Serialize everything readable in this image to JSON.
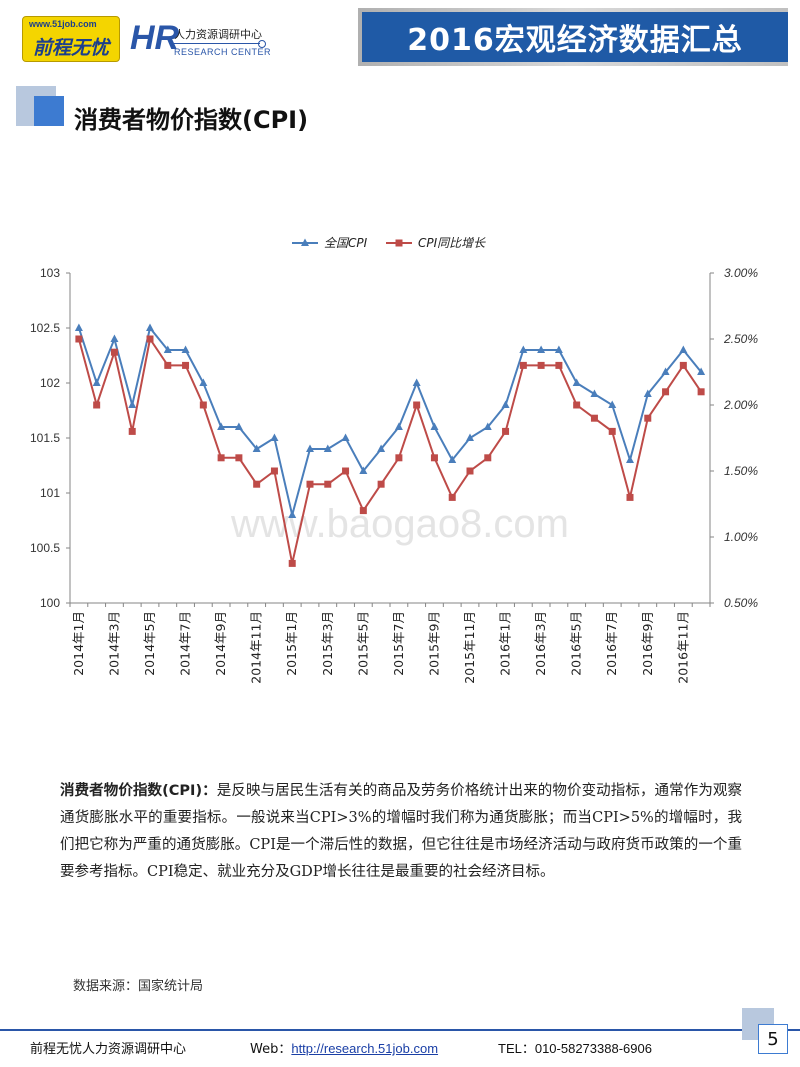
{
  "header": {
    "logo1_url": "www.51job.com",
    "logo1_name": "前程无忧",
    "logo2_mark": "HR",
    "logo2_cn": "人力资源调研中心",
    "logo2_en": "RESEARCH CENTER",
    "banner_title": "2016宏观经济数据汇总"
  },
  "section": {
    "title": "消费者物价指数(CPI)"
  },
  "watermark": "www.baogao8.com",
  "chart_data": {
    "type": "line",
    "title": "",
    "categories": [
      "2014年1月",
      "2014年2月",
      "2014年3月",
      "2014年4月",
      "2014年5月",
      "2014年6月",
      "2014年7月",
      "2014年8月",
      "2014年9月",
      "2014年10月",
      "2014年11月",
      "2014年12月",
      "2015年1月",
      "2015年2月",
      "2015年3月",
      "2015年4月",
      "2015年5月",
      "2015年6月",
      "2015年7月",
      "2015年8月",
      "2015年9月",
      "2015年10月",
      "2015年11月",
      "2015年12月",
      "2016年1月",
      "2016年2月",
      "2016年3月",
      "2016年4月",
      "2016年5月",
      "2016年6月",
      "2016年7月",
      "2016年8月",
      "2016年9月",
      "2016年10月",
      "2016年11月",
      "2016年12月"
    ],
    "tick_labels": [
      "2014年1月",
      "2014年3月",
      "2014年5月",
      "2014年7月",
      "2014年9月",
      "2014年11月",
      "2015年1月",
      "2015年3月",
      "2015年5月",
      "2015年7月",
      "2015年9月",
      "2015年11月",
      "2016年1月",
      "2016年3月",
      "2016年5月",
      "2016年7月",
      "2016年9月",
      "2016年11月"
    ],
    "series": [
      {
        "name": "全国CPI",
        "axis": "left",
        "color": "#4a7ebb",
        "marker": "triangle",
        "values": [
          102.5,
          102.0,
          102.4,
          101.8,
          102.5,
          102.3,
          102.3,
          102.0,
          101.6,
          101.6,
          101.4,
          101.5,
          100.8,
          101.4,
          101.4,
          101.5,
          101.2,
          101.4,
          101.6,
          102.0,
          101.6,
          101.3,
          101.5,
          101.6,
          101.8,
          102.3,
          102.3,
          102.3,
          102.0,
          101.9,
          101.8,
          101.3,
          101.9,
          102.1,
          102.3,
          102.1
        ]
      },
      {
        "name": "CPI同比增长",
        "axis": "right",
        "color": "#be4b48",
        "marker": "square",
        "values": [
          2.5,
          2.0,
          2.4,
          1.8,
          2.5,
          2.3,
          2.3,
          2.0,
          1.6,
          1.6,
          1.4,
          1.5,
          0.8,
          1.4,
          1.4,
          1.5,
          1.2,
          1.4,
          1.6,
          2.0,
          1.6,
          1.3,
          1.5,
          1.6,
          1.8,
          2.3,
          2.3,
          2.3,
          2.0,
          1.9,
          1.8,
          1.3,
          1.9,
          2.1,
          2.3,
          2.1
        ]
      }
    ],
    "y_left": {
      "min": 100,
      "max": 103,
      "ticks": [
        "103",
        "102.5",
        "102",
        "101.5",
        "101",
        "100.5",
        "100"
      ]
    },
    "y_right": {
      "min": 0.5,
      "max": 3.0,
      "ticks": [
        "3.00%",
        "2.50%",
        "2.00%",
        "1.50%",
        "1.00%",
        "0.50%"
      ]
    },
    "legend": "top-center",
    "grid": false
  },
  "description": {
    "term": "消费者物价指数(CPI)：",
    "text": "是反映与居民生活有关的商品及劳务价格统计出来的物价变动指标，通常作为观察通货膨胀水平的重要指标。一般说来当CPI>3%的增幅时我们称为通货膨胀；而当CPI>5%的增幅时，我们把它称为严重的通货膨胀。CPI是一个滞后性的数据，但它往往是市场经济活动与政府货币政策的一个重要参考指标。CPI稳定、就业充分及GDP增长往往是最重要的社会经济目标。"
  },
  "source": "数据来源：国家统计局",
  "footer": {
    "org": "前程无忧人力资源调研中心",
    "web_label": "Web：",
    "web_link": "http://research.51job.com",
    "tel": "TEL：010-58273388-6906",
    "page": "5"
  }
}
